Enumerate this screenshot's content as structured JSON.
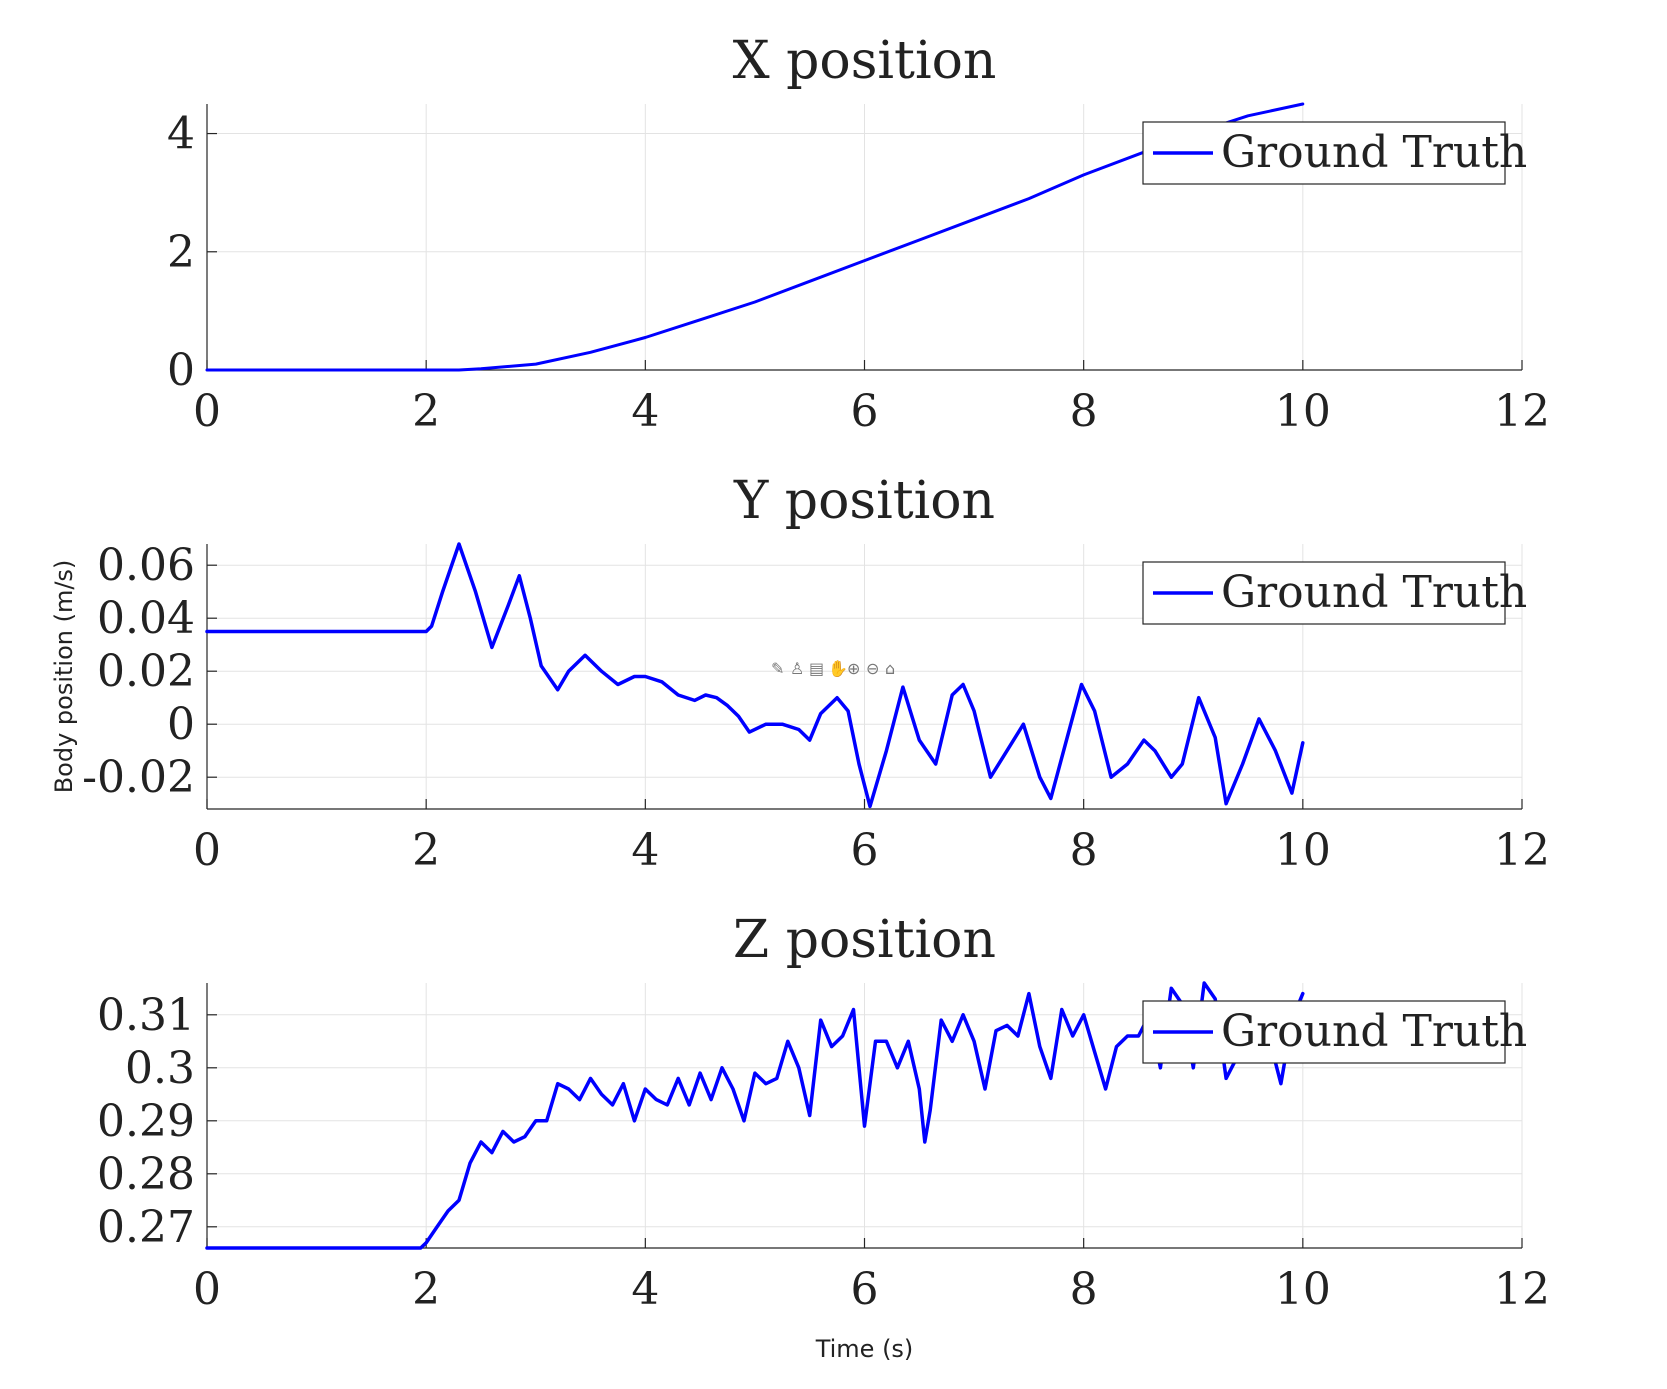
{
  "toolbar": {
    "icons": [
      "edit-icon",
      "brush-icon",
      "data-tips-icon",
      "pan-icon",
      "zoom-in-icon",
      "zoom-out-icon",
      "home-icon"
    ],
    "glyphs": [
      "✎",
      "♙",
      "▤",
      "✋",
      "⊕",
      "⊖",
      "⌂"
    ]
  },
  "chart_data": [
    {
      "type": "line",
      "title": "X position",
      "xlabel": "",
      "ylabel": "",
      "xlim": [
        0,
        12
      ],
      "ylim": [
        0,
        4.5
      ],
      "xticks": [
        0,
        2,
        4,
        6,
        8,
        10,
        12
      ],
      "yticks": [
        0,
        2,
        4
      ],
      "xtick_labels": [
        "0",
        "2",
        "4",
        "6",
        "8",
        "10",
        "12"
      ],
      "ytick_labels": [
        "0",
        "2",
        "4"
      ],
      "grid": true,
      "legend": "top-right",
      "series": [
        {
          "name": "Ground Truth",
          "color": "#0000ff",
          "x": [
            0,
            1,
            2,
            2.3,
            2.5,
            3,
            3.5,
            4,
            4.5,
            5,
            5.5,
            6,
            6.5,
            7,
            7.5,
            8,
            8.5,
            9,
            9.5,
            10
          ],
          "y": [
            0,
            0,
            0,
            0,
            0.02,
            0.1,
            0.3,
            0.55,
            0.85,
            1.15,
            1.5,
            1.85,
            2.2,
            2.55,
            2.9,
            3.3,
            3.65,
            4.0,
            4.3,
            4.5
          ]
        }
      ]
    },
    {
      "type": "line",
      "title": "Y position",
      "xlabel": "",
      "ylabel": "Body position (m/s)",
      "xlim": [
        0,
        12
      ],
      "ylim": [
        -0.032,
        0.068
      ],
      "xticks": [
        0,
        2,
        4,
        6,
        8,
        10,
        12
      ],
      "yticks": [
        -0.02,
        0,
        0.02,
        0.04,
        0.06
      ],
      "xtick_labels": [
        "0",
        "2",
        "4",
        "6",
        "8",
        "10",
        "12"
      ],
      "ytick_labels": [
        "-0.02",
        "0",
        "0.02",
        "0.04",
        "0.06"
      ],
      "grid": true,
      "legend": "top-right",
      "series": [
        {
          "name": "Ground Truth",
          "color": "#0000ff",
          "x": [
            0,
            1,
            2,
            2.05,
            2.15,
            2.3,
            2.45,
            2.6,
            2.75,
            2.85,
            2.95,
            3.05,
            3.2,
            3.3,
            3.45,
            3.6,
            3.75,
            3.9,
            4.0,
            4.15,
            4.3,
            4.45,
            4.55,
            4.65,
            4.75,
            4.85,
            4.95,
            5.1,
            5.25,
            5.4,
            5.5,
            5.6,
            5.75,
            5.85,
            5.95,
            6.05,
            6.2,
            6.35,
            6.5,
            6.65,
            6.8,
            6.9,
            7.0,
            7.15,
            7.3,
            7.45,
            7.6,
            7.7,
            7.85,
            7.98,
            8.1,
            8.25,
            8.4,
            8.55,
            8.65,
            8.8,
            8.9,
            9.05,
            9.2,
            9.3,
            9.45,
            9.6,
            9.75,
            9.9,
            10.0
          ],
          "y": [
            0.035,
            0.035,
            0.035,
            0.037,
            0.05,
            0.068,
            0.05,
            0.029,
            0.045,
            0.056,
            0.04,
            0.022,
            0.013,
            0.02,
            0.026,
            0.02,
            0.015,
            0.018,
            0.018,
            0.016,
            0.011,
            0.009,
            0.011,
            0.01,
            0.007,
            0.003,
            -0.003,
            0.0,
            0.0,
            -0.002,
            -0.006,
            0.004,
            0.01,
            0.005,
            -0.015,
            -0.031,
            -0.01,
            0.014,
            -0.006,
            -0.015,
            0.011,
            0.015,
            0.005,
            -0.02,
            -0.01,
            0.0,
            -0.02,
            -0.028,
            -0.005,
            0.015,
            0.005,
            -0.02,
            -0.015,
            -0.006,
            -0.01,
            -0.02,
            -0.015,
            0.01,
            -0.005,
            -0.03,
            -0.015,
            0.002,
            -0.01,
            -0.026,
            -0.007
          ]
        }
      ]
    },
    {
      "type": "line",
      "title": "Z position",
      "xlabel": "Time (s)",
      "ylabel": "",
      "xlim": [
        0,
        12
      ],
      "ylim": [
        0.266,
        0.316
      ],
      "xticks": [
        0,
        2,
        4,
        6,
        8,
        10,
        12
      ],
      "yticks": [
        0.27,
        0.28,
        0.29,
        0.3,
        0.31
      ],
      "xtick_labels": [
        "0",
        "2",
        "4",
        "6",
        "8",
        "10",
        "12"
      ],
      "ytick_labels": [
        "0.27",
        "0.28",
        "0.29",
        "0.3",
        "0.31"
      ],
      "grid": true,
      "legend": "top-right",
      "series": [
        {
          "name": "Ground Truth",
          "color": "#0000ff",
          "x": [
            0,
            1,
            1.95,
            2.0,
            2.1,
            2.2,
            2.3,
            2.4,
            2.5,
            2.6,
            2.7,
            2.8,
            2.9,
            3.0,
            3.1,
            3.2,
            3.3,
            3.4,
            3.5,
            3.6,
            3.7,
            3.8,
            3.9,
            4.0,
            4.1,
            4.2,
            4.3,
            4.4,
            4.5,
            4.6,
            4.7,
            4.8,
            4.9,
            5.0,
            5.1,
            5.2,
            5.3,
            5.4,
            5.5,
            5.6,
            5.7,
            5.8,
            5.9,
            6.0,
            6.1,
            6.2,
            6.3,
            6.4,
            6.5,
            6.55,
            6.6,
            6.7,
            6.8,
            6.9,
            7.0,
            7.1,
            7.2,
            7.3,
            7.4,
            7.5,
            7.6,
            7.7,
            7.8,
            7.9,
            8.0,
            8.1,
            8.2,
            8.3,
            8.4,
            8.5,
            8.6,
            8.7,
            8.8,
            8.9,
            9.0,
            9.1,
            9.2,
            9.3,
            9.4,
            9.5,
            9.6,
            9.7,
            9.8,
            9.9,
            10.0
          ],
          "y": [
            0.266,
            0.266,
            0.266,
            0.267,
            0.27,
            0.273,
            0.275,
            0.282,
            0.286,
            0.284,
            0.288,
            0.286,
            0.287,
            0.29,
            0.29,
            0.297,
            0.296,
            0.294,
            0.298,
            0.295,
            0.293,
            0.297,
            0.29,
            0.296,
            0.294,
            0.293,
            0.298,
            0.293,
            0.299,
            0.294,
            0.3,
            0.296,
            0.29,
            0.299,
            0.297,
            0.298,
            0.305,
            0.3,
            0.291,
            0.309,
            0.304,
            0.306,
            0.311,
            0.289,
            0.305,
            0.305,
            0.3,
            0.305,
            0.296,
            0.286,
            0.292,
            0.309,
            0.305,
            0.31,
            0.305,
            0.296,
            0.307,
            0.308,
            0.306,
            0.314,
            0.304,
            0.298,
            0.311,
            0.306,
            0.31,
            0.303,
            0.296,
            0.304,
            0.306,
            0.306,
            0.31,
            0.3,
            0.315,
            0.312,
            0.3,
            0.316,
            0.313,
            0.298,
            0.302,
            0.311,
            0.31,
            0.305,
            0.297,
            0.309,
            0.314
          ]
        }
      ]
    }
  ]
}
